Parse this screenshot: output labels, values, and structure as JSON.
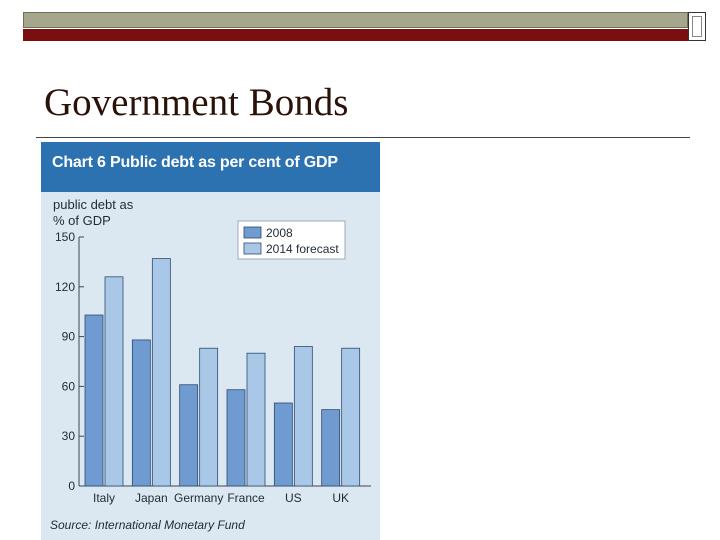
{
  "slide": {
    "title": "Government Bonds"
  },
  "chart_data": {
    "type": "bar",
    "title": "Chart 6  Public debt as per cent of GDP",
    "ylabel_line1": "public debt as",
    "ylabel_line2": "% of GDP",
    "xlabel": "",
    "categories": [
      "Italy",
      "Japan",
      "Germany",
      "France",
      "US",
      "UK"
    ],
    "series": [
      {
        "name": "2008",
        "values": [
          103,
          88,
          61,
          58,
          50,
          46
        ],
        "color": "#6f9bd0"
      },
      {
        "name": "2014 forecast",
        "values": [
          126,
          137,
          83,
          80,
          84,
          83
        ],
        "color": "#a9c8e8"
      }
    ],
    "ylim": [
      0,
      150
    ],
    "yticks": [
      0,
      30,
      60,
      90,
      120,
      150
    ],
    "legend_position": "top-right",
    "grid": false,
    "source": "Source: International Monetary Fund"
  }
}
